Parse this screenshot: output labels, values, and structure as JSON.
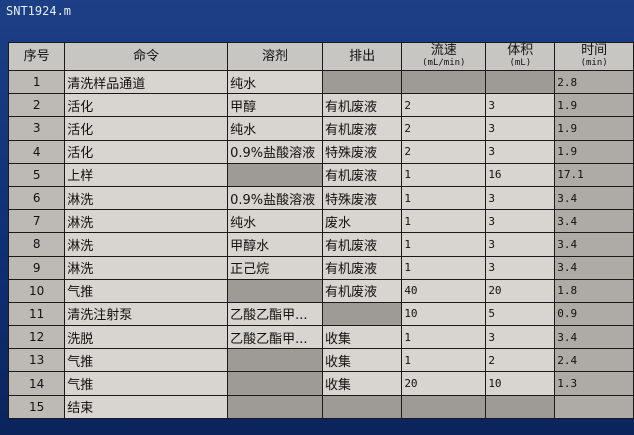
{
  "window_title": "SNT1924.m",
  "headers": [
    {
      "label": "序号"
    },
    {
      "label": "命令"
    },
    {
      "label": "溶剂"
    },
    {
      "label": "排出"
    },
    {
      "label": "流速",
      "unit": "(mL/min)"
    },
    {
      "label": "体积",
      "unit": "(mL)"
    },
    {
      "label": "时间",
      "unit": "(min)"
    }
  ],
  "rows": [
    [
      "1",
      "清洗样品通道",
      "纯水",
      "",
      "",
      "",
      "2.8"
    ],
    [
      "2",
      "活化",
      "甲醇",
      "有机废液",
      "2",
      "3",
      "1.9"
    ],
    [
      "3",
      "活化",
      "纯水",
      "有机废液",
      "2",
      "3",
      "1.9"
    ],
    [
      "4",
      "活化",
      "0.9%盐酸溶液",
      "特殊废液",
      "2",
      "3",
      "1.9"
    ],
    [
      "5",
      "上样",
      "",
      "有机废液",
      "1",
      "16",
      "17.1"
    ],
    [
      "6",
      "淋洗",
      "0.9%盐酸溶液",
      "特殊废液",
      "1",
      "3",
      "3.4"
    ],
    [
      "7",
      "淋洗",
      "纯水",
      "废水",
      "1",
      "3",
      "3.4"
    ],
    [
      "8",
      "淋洗",
      "甲醇水",
      "有机废液",
      "1",
      "3",
      "3.4"
    ],
    [
      "9",
      "淋洗",
      "正己烷",
      "有机废液",
      "1",
      "3",
      "3.4"
    ],
    [
      "10",
      "气推",
      "",
      "有机废液",
      "40",
      "20",
      "1.8"
    ],
    [
      "11",
      "清洗注射泵",
      "乙酸乙酯甲...",
      "",
      "10",
      "5",
      "0.9"
    ],
    [
      "12",
      "洗脱",
      "乙酸乙酯甲...",
      "收集",
      "1",
      "3",
      "3.4"
    ],
    [
      "13",
      "气推",
      "",
      "收集",
      "1",
      "2",
      "2.4"
    ],
    [
      "14",
      "气推",
      "",
      "收集",
      "20",
      "10",
      "1.3"
    ],
    [
      "15",
      "结束",
      "",
      "",
      "",
      "",
      ""
    ]
  ]
}
